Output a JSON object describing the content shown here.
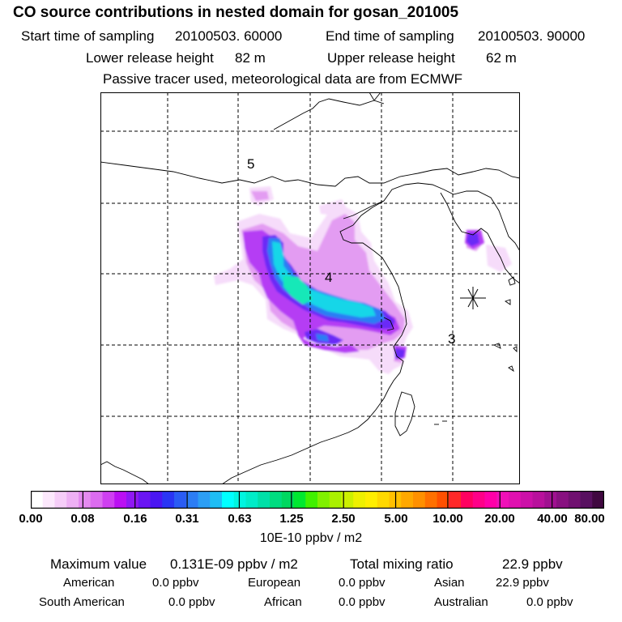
{
  "header": {
    "title": "CO  source contributions in nested domain for gosan_201005",
    "start_label": "Start time of sampling",
    "start_value": "20100503. 60000",
    "end_label": "End time of sampling",
    "end_value": "20100503. 90000",
    "lower_label": "Lower release height",
    "lower_value": "82 m",
    "upper_label": "Upper release height",
    "upper_value": "62 m",
    "note": "Passive tracer used, meteorological data are from ECMWF"
  },
  "chart_data": {
    "type": "heatmap",
    "title": "CO  source contributions in nested domain for gosan_201005",
    "map_labels": [
      "5",
      "4",
      "3"
    ],
    "receptor_marker": "asterisk",
    "colorbar": {
      "unit": "10E-10 ppbv / m2",
      "tick_labels": [
        "0.00",
        "0.08",
        "0.16",
        "0.31",
        "0.63",
        "1.25",
        "2.50",
        "5.00",
        "10.00",
        "20.00",
        "40.00",
        "80.00"
      ],
      "colors": [
        "#ffffff",
        "#fce8fc",
        "#f6cdf8",
        "#eeb0f4",
        "#e48aef",
        "#dc6cf0",
        "#cf3ff1",
        "#bb10f3",
        "#9018f5",
        "#6a15f3",
        "#4a16f2",
        "#2a35f4",
        "#2a5cf4",
        "#2c7df4",
        "#2c9ef4",
        "#1ebdf4",
        "#00ffff",
        "#00f5e0",
        "#00ecc8",
        "#00e0a8",
        "#00dc80",
        "#00d860",
        "#00e830",
        "#40f000",
        "#80f000",
        "#aaf000",
        "#ccf000",
        "#eef000",
        "#ffee00",
        "#ffd800",
        "#ffc000",
        "#ffa800",
        "#ff9000",
        "#ff7000",
        "#ff5000",
        "#ff2828",
        "#ff0060",
        "#ff0088",
        "#ff00a8",
        "#f010b8",
        "#e010b0",
        "#cc10a8",
        "#b8109c",
        "#a01090",
        "#881080",
        "#701070",
        "#581060",
        "#400840"
      ]
    },
    "concentration_field": [
      {
        "desc": "faint halo",
        "level": "0.00-0.08",
        "color": "#f6dcfa"
      },
      {
        "desc": "light",
        "level": "0.08-0.16",
        "color": "#e39cf2"
      },
      {
        "desc": "purple",
        "level": "0.16-0.31",
        "color": "#b53cf4"
      },
      {
        "desc": "violet",
        "level": "0.31-0.63",
        "color": "#6a2cf6"
      },
      {
        "desc": "blue",
        "level": "0.63-1.25",
        "color": "#2a7ef4"
      },
      {
        "desc": "cyan",
        "level": "1.25-2.50",
        "color": "#18d6e8"
      },
      {
        "desc": "aqua core",
        "level": "1.25-2.50",
        "color": "#18e8b8"
      }
    ]
  },
  "summary": {
    "max_label": "Maximum value",
    "max_value": "0.131E-09 ppbv / m2",
    "total_label": "Total mixing ratio",
    "total_value": "22.9 ppbv",
    "regions": [
      {
        "name": "American",
        "value": "0.0 ppbv"
      },
      {
        "name": "European",
        "value": "0.0 ppbv"
      },
      {
        "name": "Asian",
        "value": "22.9 ppbv"
      },
      {
        "name": "South American",
        "value": "0.0 ppbv"
      },
      {
        "name": "African",
        "value": "0.0 ppbv"
      },
      {
        "name": "Australian",
        "value": "0.0 ppbv"
      }
    ]
  }
}
